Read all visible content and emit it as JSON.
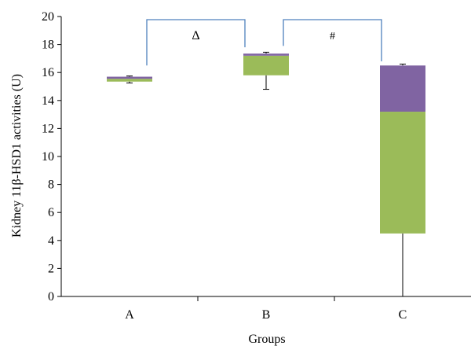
{
  "chart_data": {
    "type": "box",
    "xlabel": "Groups",
    "ylabel": "Kidney 11β-HSD1 activities (U)",
    "ylim": [
      0,
      20
    ],
    "yticks": [
      0,
      2,
      4,
      6,
      8,
      10,
      12,
      14,
      16,
      18,
      20
    ],
    "categories": [
      "A",
      "B",
      "C"
    ],
    "boxes": [
      {
        "category": "A",
        "min": 15.25,
        "q1": 15.35,
        "median": 15.55,
        "q3": 15.7,
        "max": 15.75
      },
      {
        "category": "B",
        "min": 14.8,
        "q1": 15.8,
        "median": 17.2,
        "q3": 17.35,
        "max": 17.45
      },
      {
        "category": "C",
        "min": 0.0,
        "q1": 4.5,
        "median": 13.2,
        "q3": 16.5,
        "max": 16.6
      }
    ],
    "colors": {
      "lower": "#9bbb59",
      "upper": "#8064a2",
      "bracket": "#4f81bd"
    },
    "annotations": [
      {
        "text": "Δ",
        "from": "A",
        "to": "B"
      },
      {
        "text": "#",
        "from": "B",
        "to": "C"
      }
    ]
  }
}
